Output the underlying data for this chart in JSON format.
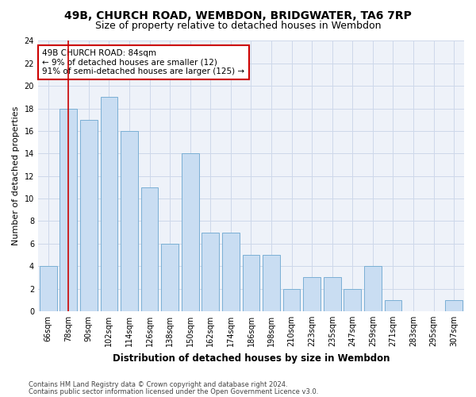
{
  "title1": "49B, CHURCH ROAD, WEMBDON, BRIDGWATER, TA6 7RP",
  "title2": "Size of property relative to detached houses in Wembdon",
  "xlabel": "Distribution of detached houses by size in Wembdon",
  "ylabel": "Number of detached properties",
  "categories": [
    "66sqm",
    "78sqm",
    "90sqm",
    "102sqm",
    "114sqm",
    "126sqm",
    "138sqm",
    "150sqm",
    "162sqm",
    "174sqm",
    "186sqm",
    "198sqm",
    "210sqm",
    "223sqm",
    "235sqm",
    "247sqm",
    "259sqm",
    "271sqm",
    "283sqm",
    "295sqm",
    "307sqm"
  ],
  "values": [
    4,
    18,
    17,
    19,
    16,
    11,
    6,
    14,
    7,
    7,
    5,
    5,
    2,
    3,
    3,
    2,
    4,
    1,
    0,
    0,
    1
  ],
  "bar_color": "#c9ddf2",
  "bar_edge_color": "#7aafd4",
  "vline_x": 1.0,
  "vline_color": "#cc0000",
  "annotation_text": "49B CHURCH ROAD: 84sqm\n← 9% of detached houses are smaller (12)\n91% of semi-detached houses are larger (125) →",
  "annotation_box_color": "#ffffff",
  "annotation_box_edge": "#cc0000",
  "ylim": [
    0,
    24
  ],
  "yticks": [
    0,
    2,
    4,
    6,
    8,
    10,
    12,
    14,
    16,
    18,
    20,
    22,
    24
  ],
  "grid_color": "#cdd8ea",
  "background_color": "#eef2f9",
  "footer1": "Contains HM Land Registry data © Crown copyright and database right 2024.",
  "footer2": "Contains public sector information licensed under the Open Government Licence v3.0.",
  "title1_fontsize": 10,
  "title2_fontsize": 9,
  "xlabel_fontsize": 8.5,
  "ylabel_fontsize": 8,
  "tick_fontsize": 7,
  "footer_fontsize": 6
}
